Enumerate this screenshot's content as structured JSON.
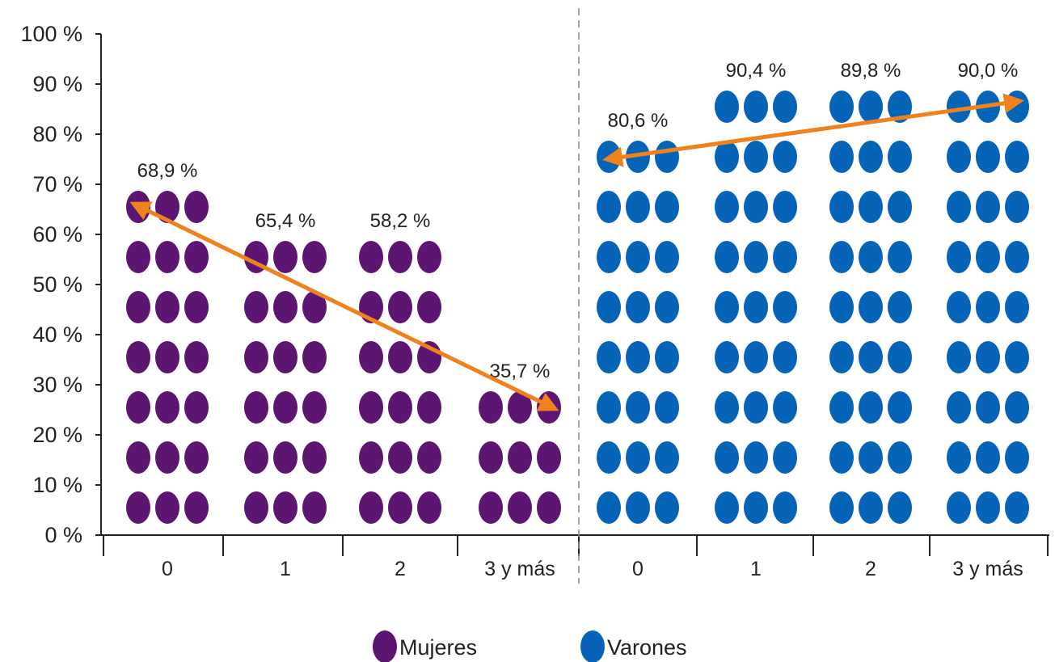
{
  "chart_data": {
    "type": "bar",
    "style": "dot-column pictogram",
    "y_ticks": [
      "0 %",
      "10 %",
      "20 %",
      "30 %",
      "40 %",
      "50 %",
      "60 %",
      "70 %",
      "80 %",
      "90 %",
      "100 %"
    ],
    "ylim": [
      0,
      100
    ],
    "groups": [
      {
        "name": "Mujeres",
        "color": "#5c1570",
        "categories": [
          "0",
          "1",
          "2",
          "3 y más"
        ],
        "values": [
          68.9,
          65.4,
          58.2,
          35.7
        ],
        "labels": [
          "68,9 %",
          "65,4 %",
          "58,2 %",
          "35,7 %"
        ],
        "trend_arrow": {
          "color": "#f0821e",
          "from_category": "0",
          "to_category": "3 y más"
        }
      },
      {
        "name": "Varones",
        "color": "#0563b8",
        "categories": [
          "0",
          "1",
          "2",
          "3 y más"
        ],
        "values": [
          80.6,
          90.4,
          89.8,
          90.0
        ],
        "labels": [
          "80,6 %",
          "90,4 %",
          "89,8 %",
          "90,0 %"
        ],
        "trend_arrow": {
          "color": "#f0821e",
          "from_category": "0",
          "to_category": "3 y más"
        }
      }
    ],
    "legend": {
      "placement": "bottom-center",
      "entries": [
        "Mujeres",
        "Varones"
      ]
    },
    "grid": false
  }
}
